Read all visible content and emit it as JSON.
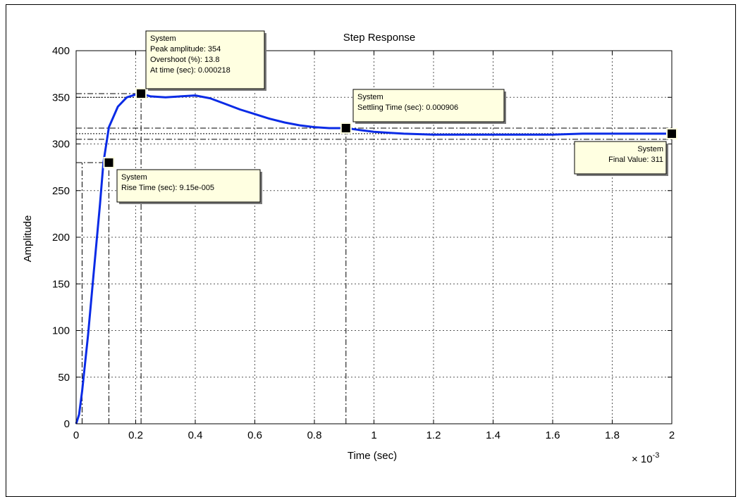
{
  "chart_data": {
    "type": "line",
    "title": "Step Response",
    "xlabel": "Time (sec)",
    "ylabel": "Amplitude",
    "x_multiplier": {
      "base": "× 10",
      "exponent": "-3"
    },
    "xlim": [
      0,
      2
    ],
    "ylim": [
      0,
      400
    ],
    "x_ticks": [
      0,
      0.2,
      0.4,
      0.6,
      0.8,
      1,
      1.2,
      1.4,
      1.6,
      1.8,
      2
    ],
    "x_tick_labels": [
      "0",
      "0.2",
      "0.4",
      "0.6",
      "0.8",
      "1",
      "1.2",
      "1.4",
      "1.6",
      "1.8",
      "2"
    ],
    "y_ticks": [
      0,
      50,
      100,
      150,
      200,
      250,
      300,
      350,
      400
    ],
    "y_tick_labels": [
      "0",
      "50",
      "100",
      "150",
      "200",
      "250",
      "300",
      "350",
      "400"
    ],
    "grid": true,
    "series": [
      {
        "color": "#0a2be6",
        "x": [
          0,
          0.01,
          0.02,
          0.04,
          0.06,
          0.08,
          0.0915,
          0.11,
          0.14,
          0.17,
          0.2,
          0.218,
          0.25,
          0.3,
          0.35,
          0.4,
          0.45,
          0.5,
          0.55,
          0.6,
          0.65,
          0.7,
          0.75,
          0.8,
          0.85,
          0.906,
          0.95,
          1.0,
          1.05,
          1.1,
          1.2,
          1.3,
          1.4,
          1.5,
          1.6,
          1.7,
          1.8,
          1.9,
          2.0
        ],
        "y": [
          0,
          10,
          35,
          95,
          165,
          235,
          280,
          318,
          340,
          350,
          353,
          354,
          351,
          350,
          351,
          352,
          349,
          343,
          337,
          332,
          327,
          323,
          320,
          318,
          317,
          317,
          315,
          313,
          312,
          311,
          310,
          310,
          310,
          310,
          310,
          311,
          311,
          311,
          311
        ]
      }
    ],
    "markers": [
      {
        "name": "rise",
        "x": 0.11,
        "y": 280
      },
      {
        "name": "peak",
        "x": 0.218,
        "y": 354
      },
      {
        "name": "settling",
        "x": 0.906,
        "y": 317
      },
      {
        "name": "final",
        "x": 2.0,
        "y": 311
      }
    ],
    "hlines": [
      {
        "y": 354,
        "style": "dashdot",
        "x_end": 0.218
      },
      {
        "y": 350,
        "style": "dotted",
        "x_end": 0.218
      },
      {
        "y": 317,
        "style": "dashdot",
        "x_end": 2.0
      },
      {
        "y": 311,
        "style": "dotted",
        "x_end": 2.0
      },
      {
        "y": 305,
        "style": "dashdot",
        "x_end": 2.0
      },
      {
        "y": 280,
        "style": "dashdot",
        "x_end": 0.11
      }
    ],
    "vlines": [
      {
        "x": 0.02,
        "style": "dashdot",
        "y_end": 280
      },
      {
        "x": 0.11,
        "style": "dashdot",
        "y_end": 280
      },
      {
        "x": 0.218,
        "style": "dashdot",
        "y_end": 354
      },
      {
        "x": 0.906,
        "style": "dashdot",
        "y_end": 317
      }
    ],
    "annotations": [
      {
        "name": "peak",
        "lines": [
          "System",
          "Peak amplitude: 354",
          "Overshoot (%): 13.8",
          "At time (sec): 0.000218"
        ]
      },
      {
        "name": "settling",
        "lines": [
          "System",
          "Settling Time (sec): 0.000906"
        ]
      },
      {
        "name": "rise",
        "lines": [
          "System",
          "Rise Time (sec): 9.15e-005"
        ]
      },
      {
        "name": "final",
        "lines": [
          "System",
          "Final Value: 311"
        ]
      }
    ]
  }
}
